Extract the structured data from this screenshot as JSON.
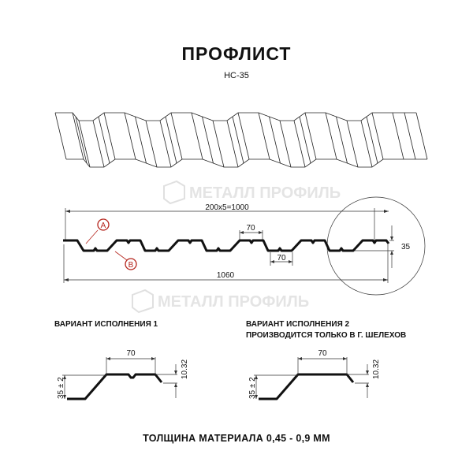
{
  "header": {
    "title": "ПРОФЛИСТ",
    "subtitle": "НС-35"
  },
  "profile": {
    "pitch_label": "200х5=1000",
    "total_width_label": "1060",
    "crest_width_label": "70",
    "trough_width_label": "70",
    "height_label": "35",
    "marker_a": "A",
    "marker_b": "B",
    "marker_color": "#b5241c"
  },
  "watermark": {
    "text": "МЕТАЛЛ ПРОФИЛЬ"
  },
  "variants": [
    {
      "caption_line1": "ВАРИАНТ ИСПОЛНЕНИЯ 1",
      "caption_line2": "",
      "width_label": "70",
      "offset_label": "10.32",
      "height_label": "35 ± 2",
      "has_notch": true
    },
    {
      "caption_line1": "ВАРИАНТ ИСПОЛНЕНИЯ 2",
      "caption_line2": "ПРОИЗВОДИТСЯ ТОЛЬКО В Г. ШЕЛЕХОВ",
      "width_label": "70",
      "offset_label": "10.32",
      "height_label": "35 ± 2",
      "has_notch": false
    }
  ],
  "footer": {
    "thickness": "ТОЛЩИНА МАТЕРИАЛА 0,45 - 0,9 ММ"
  }
}
